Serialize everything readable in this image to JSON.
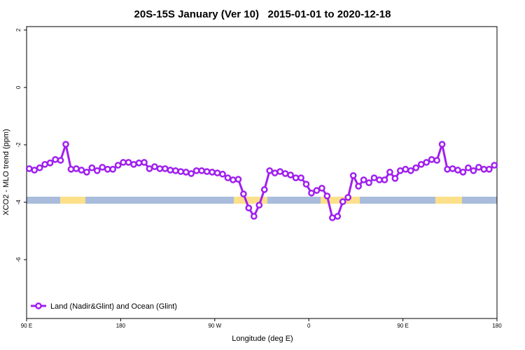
{
  "chart_data": {
    "type": "line",
    "title": "20S-15S January (Ver 10)   2015-01-01 to 2020-12-18",
    "x_label": "Longitude (deg E)",
    "y_label": "XCO2 - MLO trend (ppm)",
    "xlim": [
      90,
      540
    ],
    "ylim": [
      -8.05,
      2.12
    ],
    "xticks": [
      {
        "value": 90,
        "label": "90 E"
      },
      {
        "value": 180,
        "label": "180"
      },
      {
        "value": 270,
        "label": "90 W"
      },
      {
        "value": 360,
        "label": "0"
      },
      {
        "value": 450,
        "label": "90 E"
      },
      {
        "value": 540,
        "label": "180"
      }
    ],
    "yticks": [
      2,
      0,
      -2,
      -4,
      -6
    ],
    "grid": false,
    "legend_position": "bottom-left",
    "x": [
      92.5,
      97.5,
      102.5,
      107.5,
      112.5,
      117.5,
      122.5,
      127.5,
      132.5,
      137.5,
      142.5,
      147.5,
      152.5,
      157.5,
      162.5,
      167.5,
      172.5,
      177.5,
      182.5,
      187.5,
      192.5,
      197.5,
      202.5,
      207.5,
      212.5,
      217.5,
      222.5,
      227.5,
      232.5,
      237.5,
      242.5,
      247.5,
      252.5,
      257.5,
      262.5,
      267.5,
      272.5,
      277.5,
      282.5,
      287.5,
      292.5,
      297.5,
      302.5,
      307.5,
      312.5,
      317.5,
      322.5,
      327.5,
      332.5,
      337.5,
      342.5,
      347.5,
      352.5,
      357.5,
      362.5,
      367.5,
      372.5,
      377.5,
      382.5,
      387.5,
      392.5,
      397.5,
      402.5,
      407.5,
      412.5,
      417.5,
      422.5,
      427.5,
      432.5,
      437.5,
      442.5,
      447.5,
      452.5,
      457.5,
      462.5,
      467.5,
      472.5,
      477.5,
      482.5,
      487.5,
      492.5,
      497.5,
      502.5,
      507.5,
      512.5,
      517.5,
      522.5,
      527.5,
      532.5,
      537.5
    ],
    "series": [
      {
        "name": "Land (Nadir&Glint) and Ocean (Glint)",
        "color": "#a020f0",
        "values": [
          -2.83,
          -2.88,
          -2.8,
          -2.68,
          -2.63,
          -2.51,
          -2.54,
          -1.98,
          -2.85,
          -2.83,
          -2.88,
          -2.95,
          -2.8,
          -2.9,
          -2.78,
          -2.85,
          -2.85,
          -2.71,
          -2.61,
          -2.61,
          -2.68,
          -2.63,
          -2.61,
          -2.83,
          -2.76,
          -2.83,
          -2.83,
          -2.88,
          -2.9,
          -2.93,
          -2.95,
          -3.0,
          -2.9,
          -2.9,
          -2.93,
          -2.95,
          -2.98,
          -3.02,
          -3.15,
          -3.22,
          -3.2,
          -3.71,
          -4.2,
          -4.49,
          -4.1,
          -3.56,
          -2.9,
          -2.98,
          -2.93,
          -3.0,
          -3.05,
          -3.15,
          -3.15,
          -3.37,
          -3.68,
          -3.59,
          -3.51,
          -3.78,
          -4.54,
          -4.49,
          -3.98,
          -3.83,
          -3.07,
          -3.44,
          -3.22,
          -3.32,
          -3.15,
          -3.22,
          -3.22,
          -2.95,
          -3.17,
          -2.9,
          -2.85,
          -2.9,
          -2.8,
          -2.68,
          -2.61,
          -2.51,
          -2.54,
          -1.98,
          -2.85,
          -2.83,
          -2.88,
          -2.95,
          -2.8,
          -2.9,
          -2.78,
          -2.85,
          -2.85,
          -2.71
        ]
      }
    ]
  }
}
